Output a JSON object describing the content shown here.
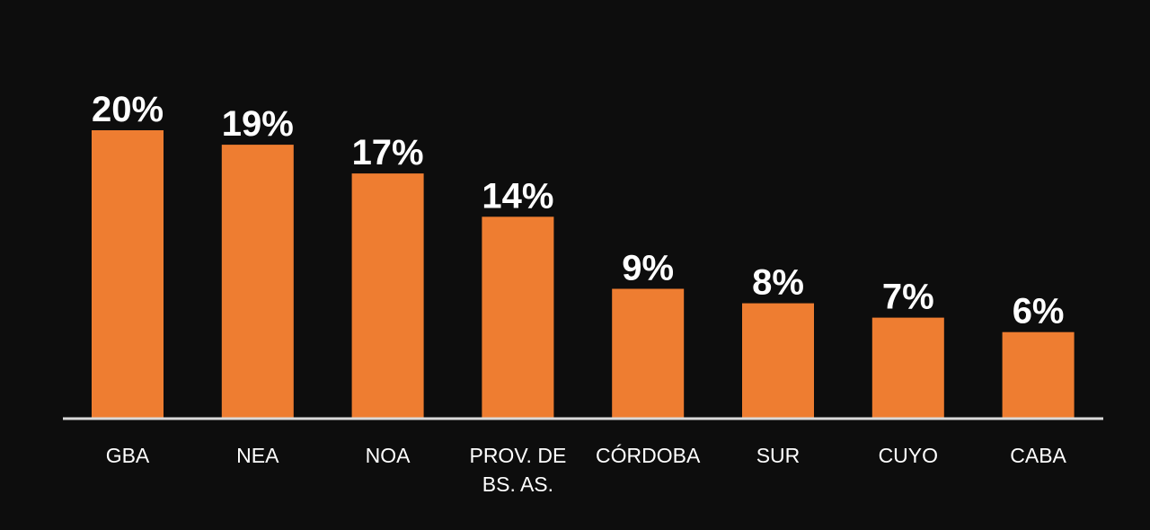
{
  "chart_data": {
    "type": "bar",
    "categories": [
      [
        "GBA"
      ],
      [
        "NEA"
      ],
      [
        "NOA"
      ],
      [
        "PROV. DE",
        "BS. AS."
      ],
      [
        "CÓRDOBA"
      ],
      [
        "SUR"
      ],
      [
        "CUYO"
      ],
      [
        "CABA"
      ]
    ],
    "values": [
      20,
      19,
      17,
      14,
      9,
      8,
      7,
      6
    ],
    "value_labels": [
      "20%",
      "19%",
      "17%",
      "14%",
      "9%",
      "8%",
      "7%",
      "6%"
    ],
    "ylim": [
      0,
      20
    ],
    "grid": false,
    "legend": "none",
    "colors": {
      "background": "#0d0d0d",
      "bar": "#ee7d31",
      "axis": "#d9d9d9",
      "text": "#ffffff"
    }
  }
}
